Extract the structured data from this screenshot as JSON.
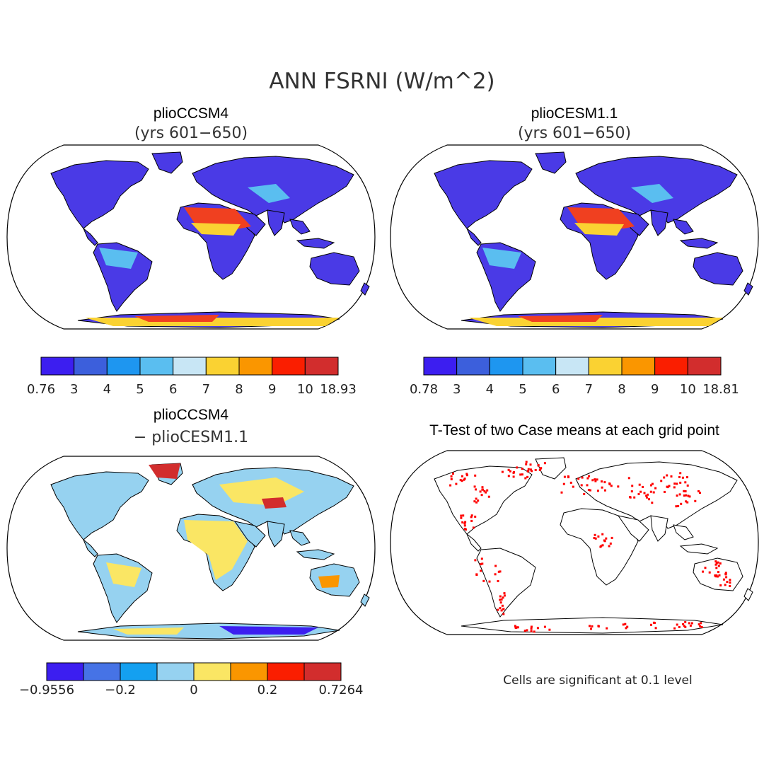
{
  "title": "ANN FSRNI (W/m^2)",
  "panels": [
    {
      "title": "plioCCSM4",
      "subtitle": "(yrs 601−650)",
      "colorbar": {
        "colors": [
          "#3c1ef0",
          "#3c5fdc",
          "#1e96f0",
          "#5abef0",
          "#c8e6f5",
          "#fad232",
          "#fa9600",
          "#fa1e00",
          "#d22d2d"
        ],
        "ticks": [
          "0.76",
          "3",
          "4",
          "5",
          "6",
          "7",
          "8",
          "9",
          "10",
          "18.93"
        ]
      }
    },
    {
      "title": "plioCESM1.1",
      "subtitle": "(yrs 601−650)",
      "colorbar": {
        "colors": [
          "#3c1ef0",
          "#3c5fdc",
          "#1e96f0",
          "#5abef0",
          "#c8e6f5",
          "#fad232",
          "#fa9600",
          "#fa1e00",
          "#d22d2d"
        ],
        "ticks": [
          "0.78",
          "3",
          "4",
          "5",
          "6",
          "7",
          "8",
          "9",
          "10",
          "18.81"
        ]
      }
    },
    {
      "title": "plioCCSM4",
      "subtitle": "− plioCESM1.1",
      "colorbar": {
        "colors": [
          "#3c1ef0",
          "#4673e6",
          "#14a0f0",
          "#96d2f0",
          "#fae664",
          "#fa9600",
          "#fa1e00",
          "#d22d2d"
        ],
        "ticks": [
          "−0.9556",
          "−0.2",
          "0",
          "0.2",
          "0.7264"
        ]
      }
    },
    {
      "title": "T-Test of two Case means at each grid point",
      "note": "Cells are significant at 0.1 level"
    }
  ]
}
